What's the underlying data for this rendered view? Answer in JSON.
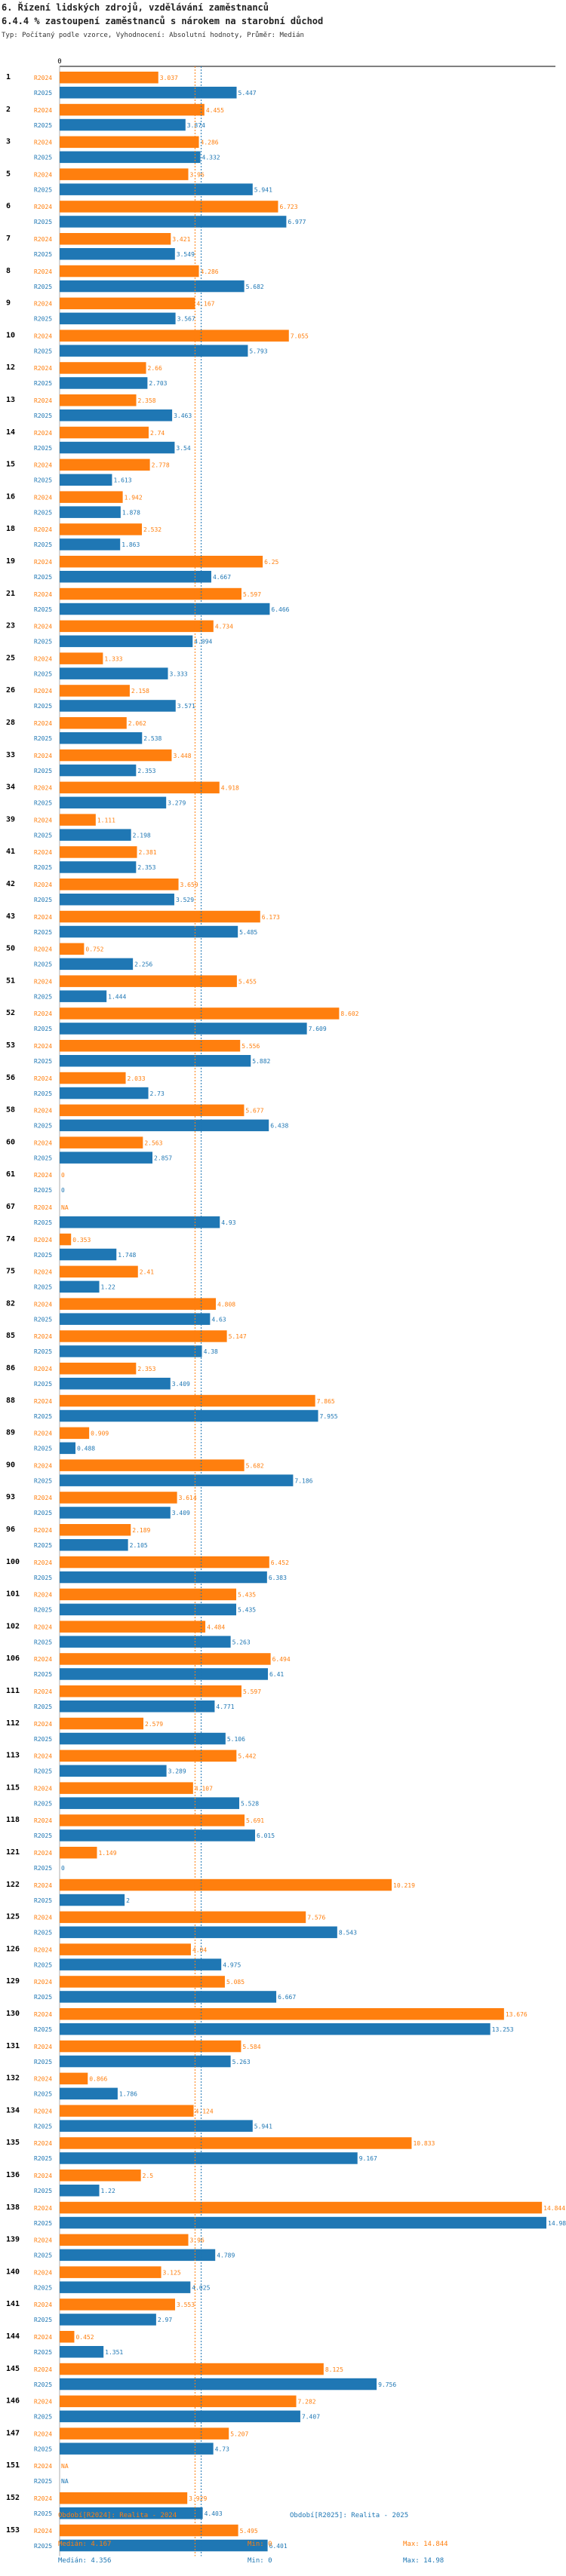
{
  "header": {
    "title": "6. Řízení lidských zdrojů, vzdělávání zaměstnanců",
    "subtitle": "6.4.4 % zastoupení zaměstnanců s nárokem na starobní důchod",
    "type_line": "Typ: Počítaný podle vzorce, Vyhodnocení: Absolutní hodnoty, Průměr: Medián"
  },
  "colors": {
    "r2024": "#ff7f0e",
    "r2025": "#1f77b4",
    "axis": "#000000",
    "grid": "#999999"
  },
  "chart_data": {
    "type": "bar",
    "orientation": "horizontal",
    "axis_tick_label": "0",
    "x_axis_min": 0,
    "x_axis_max": 14.98,
    "series_names": [
      "R2024",
      "R2025"
    ],
    "missing_label": "NA",
    "median_2024": 4.167,
    "median_2025": 4.356,
    "categories": [
      "1",
      "2",
      "3",
      "5",
      "6",
      "7",
      "8",
      "9",
      "10",
      "12",
      "13",
      "14",
      "15",
      "16",
      "18",
      "19",
      "21",
      "23",
      "25",
      "26",
      "28",
      "33",
      "34",
      "39",
      "41",
      "42",
      "43",
      "50",
      "51",
      "52",
      "53",
      "56",
      "58",
      "60",
      "61",
      "67",
      "74",
      "75",
      "82",
      "85",
      "86",
      "88",
      "89",
      "90",
      "93",
      "96",
      "100",
      "101",
      "102",
      "106",
      "111",
      "112",
      "113",
      "115",
      "118",
      "121",
      "122",
      "125",
      "126",
      "129",
      "130",
      "131",
      "132",
      "134",
      "135",
      "136",
      "138",
      "139",
      "140",
      "141",
      "144",
      "145",
      "146",
      "147",
      "151",
      "152",
      "153"
    ],
    "r2024_values": [
      3.037,
      4.455,
      4.286,
      3.96,
      6.723,
      3.421,
      4.286,
      4.167,
      7.055,
      2.66,
      2.358,
      2.74,
      2.778,
      1.942,
      2.532,
      6.25,
      5.597,
      4.734,
      1.333,
      2.158,
      2.062,
      3.448,
      4.918,
      1.111,
      2.381,
      3.659,
      6.173,
      0.752,
      5.455,
      8.602,
      5.556,
      2.033,
      5.677,
      2.563,
      0,
      null,
      0.353,
      2.41,
      4.808,
      5.147,
      2.353,
      7.865,
      0.909,
      5.682,
      3.614,
      2.189,
      6.452,
      5.435,
      4.484,
      6.494,
      5.597,
      2.579,
      5.442,
      4.107,
      5.691,
      1.149,
      10.219,
      7.576,
      4.04,
      5.085,
      13.676,
      5.584,
      0.866,
      4.124,
      10.833,
      2.5,
      14.844,
      3.96,
      3.125,
      3.553,
      0.452,
      8.125,
      7.282,
      5.207,
      null,
      3.929,
      5.495
    ],
    "r2025_values": [
      5.447,
      3.874,
      4.332,
      5.941,
      6.977,
      3.549,
      5.682,
      3.567,
      5.793,
      2.703,
      3.463,
      3.54,
      1.613,
      1.878,
      1.863,
      4.667,
      6.466,
      4.094,
      3.333,
      3.571,
      2.538,
      2.353,
      3.279,
      2.198,
      2.353,
      3.529,
      5.485,
      2.256,
      1.444,
      7.609,
      5.882,
      2.73,
      6.438,
      2.857,
      0,
      4.93,
      1.748,
      1.22,
      4.63,
      4.38,
      3.409,
      7.955,
      0.488,
      7.186,
      3.409,
      2.105,
      6.383,
      5.435,
      5.263,
      6.41,
      4.771,
      5.106,
      3.289,
      5.528,
      6.015,
      0,
      2,
      8.543,
      4.975,
      6.667,
      13.253,
      5.263,
      1.786,
      5.941,
      9.167,
      1.22,
      14.98,
      4.789,
      4.025,
      2.97,
      1.351,
      9.756,
      7.407,
      4.73,
      null,
      4.403,
      6.401
    ],
    "r2024_labels": [
      "3.037",
      "4.455",
      "4.286",
      "3.96",
      "6.723",
      "3.421",
      "4.286",
      "4.167",
      "7.055",
      "2.66",
      "2.358",
      "2.74",
      "2.778",
      "1.942",
      "2.532",
      "6.25",
      "5.597",
      "4.734",
      "1.333",
      "2.158",
      "2.062",
      "3.448",
      "4.918",
      "1.111",
      "2.381",
      "3.659",
      "6.173",
      "0.752",
      "5.455",
      "8.602",
      "5.556",
      "2.033",
      "5.677",
      "2.563",
      "0",
      "NA",
      "0.353",
      "2.41",
      "4.808",
      "5.147",
      "2.353",
      "7.865",
      "0.909",
      "5.682",
      "3.614",
      "2.189",
      "6.452",
      "5.435",
      "4.484",
      "6.494",
      "5.597",
      "2.579",
      "5.442",
      "4.107",
      "5.691",
      "1.149",
      "10.219",
      "7.576",
      "4.04",
      "5.085",
      "13.676",
      "5.584",
      "0.866",
      "4.124",
      "10.833",
      "2.5",
      "14.844",
      "3.96",
      "3.125",
      "3.553",
      "0.452",
      "8.125",
      "7.282",
      "5.207",
      "NA",
      "3.929",
      "5.495"
    ],
    "r2025_labels": [
      "5.447",
      "3.874",
      "4.332",
      "5.941",
      "6.977",
      "3.549",
      "5.682",
      "3.567",
      "5.793",
      "2.703",
      "3.463",
      "3.54",
      "1.613",
      "1.878",
      "1.863",
      "4.667",
      "6.466",
      "4.094",
      "3.333",
      "3.571",
      "2.538",
      "2.353",
      "3.279",
      "2.198",
      "2.353",
      "3.529",
      "5.485",
      "2.256",
      "1.444",
      "7.609",
      "5.882",
      "2.73",
      "6.438",
      "2.857",
      "0",
      "4.93",
      "1.748",
      "1.22",
      "4.63",
      "4.38",
      "3.409",
      "7.955",
      "0.488",
      "7.186",
      "3.409",
      "2.105",
      "6.383",
      "5.435",
      "5.263",
      "6.41",
      "4.771",
      "5.106",
      "3.289",
      "5.528",
      "6.015",
      "0",
      "2",
      "8.543",
      "4.975",
      "6.667",
      "13.253",
      "5.263",
      "1.786",
      "5.941",
      "9.167",
      "1.22",
      "14.98",
      "4.789",
      "4.025",
      "2.97",
      "1.351",
      "9.756",
      "7.407",
      "4.73",
      "NA",
      "4.403",
      "6.401"
    ]
  },
  "legend": {
    "series_2024": "Období[R2024]: Realita - 2024",
    "series_2025": "Období[R2025]: Realita - 2025",
    "median_2024": "Medián: 4.167",
    "median_2025": "Medián: 4.356",
    "min_2024": "Min: 0",
    "min_2025": "Min: 0",
    "max_2024": "Max: 14.844",
    "max_2025": "Max: 14.98"
  }
}
